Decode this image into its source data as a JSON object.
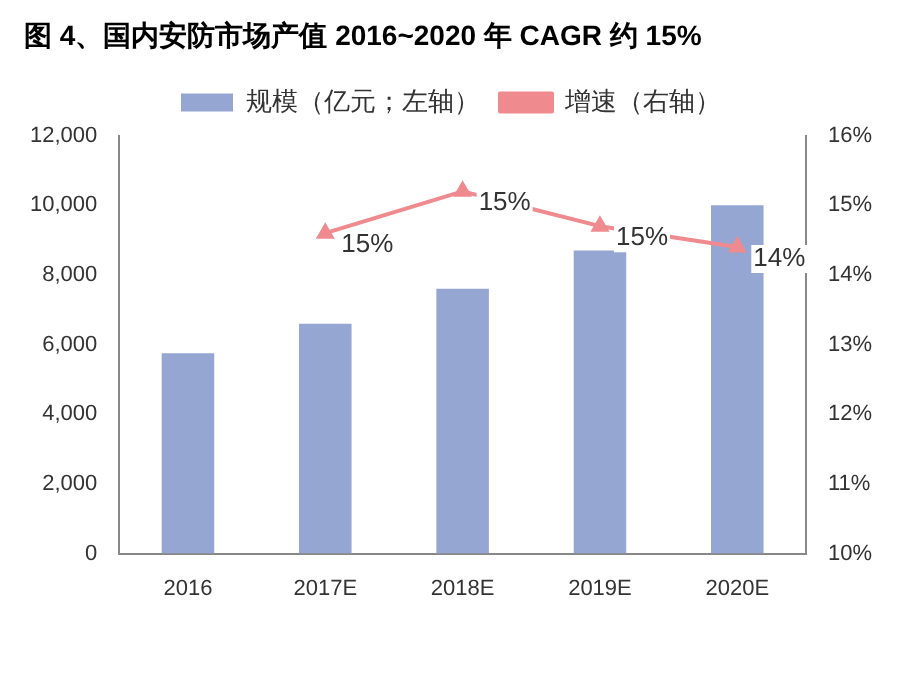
{
  "chart_data": {
    "type": "bar",
    "title": "图 4、国内安防市场产值 2016~2020 年 CAGR 约 15%",
    "categories": [
      "2016",
      "2017E",
      "2018E",
      "2019E",
      "2020E"
    ],
    "series": [
      {
        "name": "规模（亿元；左轴）",
        "color": "#95a6d3",
        "values": [
          5750,
          6600,
          7600,
          8700,
          10000
        ]
      },
      {
        "name": "增速（右轴）",
        "type": "line",
        "axis": "y2",
        "color": "#ef8a8e",
        "values": [
          null,
          14.6,
          15.2,
          14.7,
          14.4
        ],
        "value_labels": [
          null,
          "15%",
          "15%",
          "15%",
          "14%"
        ],
        "marker": "triangle"
      }
    ],
    "ylim": [
      0,
      12000
    ],
    "yticks": [
      {
        "value": 0,
        "label": "0"
      },
      {
        "value": 2000,
        "label": "2,000"
      },
      {
        "value": 4000,
        "label": "4,000"
      },
      {
        "value": 6000,
        "label": "6,000"
      },
      {
        "value": 8000,
        "label": "8,000"
      },
      {
        "value": 10000,
        "label": "10,000"
      },
      {
        "value": 12000,
        "label": "12,000"
      }
    ],
    "y2lim": [
      10,
      16
    ],
    "y2ticks": [
      {
        "value": 10,
        "label": "10%"
      },
      {
        "value": 11,
        "label": "11%"
      },
      {
        "value": 12,
        "label": "12%"
      },
      {
        "value": 13,
        "label": "13%"
      },
      {
        "value": 14,
        "label": "14%"
      },
      {
        "value": 15,
        "label": "15%"
      },
      {
        "value": 16,
        "label": "16%"
      }
    ],
    "grid": false,
    "legend": "top"
  }
}
